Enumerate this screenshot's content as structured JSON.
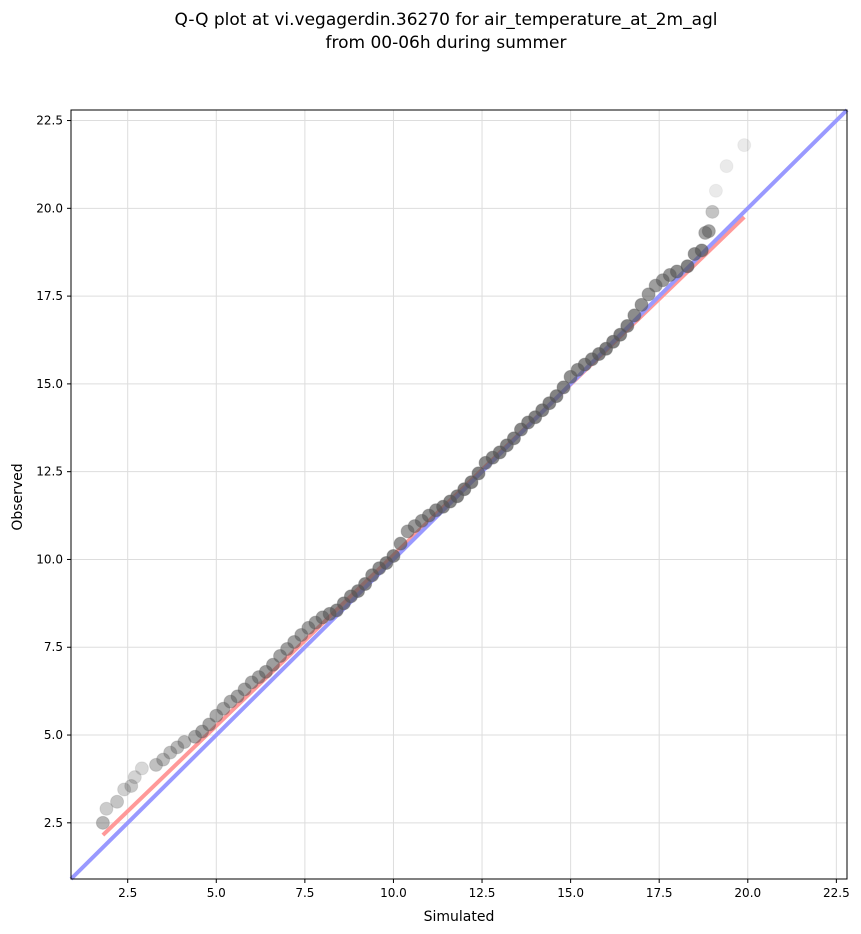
{
  "chart_data": {
    "type": "scatter",
    "title": "Q-Q plot at vi.vegagerdin.36270 for air_temperature_at_2m_agl",
    "subtitle": "from 00-06h during summer",
    "xlabel": "Simulated",
    "ylabel": "Observed",
    "xlim": [
      0.9,
      22.8
    ],
    "ylim": [
      0.9,
      22.8
    ],
    "grid": true,
    "xticks": [
      "2.5",
      "5.0",
      "7.5",
      "10.0",
      "12.5",
      "15.0",
      "17.5",
      "20.0",
      "22.5"
    ],
    "yticks": [
      "2.5",
      "5.0",
      "7.5",
      "10.0",
      "12.5",
      "15.0",
      "17.5",
      "20.0",
      "22.5"
    ],
    "series": [
      {
        "kind": "quantiles",
        "color": "#555555",
        "points": [
          [
            1.8,
            2.5
          ],
          [
            1.9,
            2.9
          ],
          [
            2.2,
            3.1
          ],
          [
            2.4,
            3.45
          ],
          [
            2.6,
            3.55
          ],
          [
            2.7,
            3.8
          ],
          [
            2.9,
            4.05
          ],
          [
            3.3,
            4.15
          ],
          [
            3.5,
            4.3
          ],
          [
            3.7,
            4.5
          ],
          [
            3.9,
            4.65
          ],
          [
            4.1,
            4.8
          ],
          [
            4.4,
            4.95
          ],
          [
            4.6,
            5.1
          ],
          [
            4.8,
            5.3
          ],
          [
            5.0,
            5.55
          ],
          [
            5.2,
            5.75
          ],
          [
            5.4,
            5.95
          ],
          [
            5.6,
            6.1
          ],
          [
            5.8,
            6.3
          ],
          [
            6.0,
            6.5
          ],
          [
            6.2,
            6.65
          ],
          [
            6.4,
            6.8
          ],
          [
            6.6,
            7.0
          ],
          [
            6.8,
            7.25
          ],
          [
            7.0,
            7.45
          ],
          [
            7.2,
            7.65
          ],
          [
            7.4,
            7.85
          ],
          [
            7.6,
            8.05
          ],
          [
            7.8,
            8.2
          ],
          [
            8.0,
            8.35
          ],
          [
            8.2,
            8.45
          ],
          [
            8.4,
            8.55
          ],
          [
            8.6,
            8.75
          ],
          [
            8.8,
            8.95
          ],
          [
            9.0,
            9.1
          ],
          [
            9.2,
            9.3
          ],
          [
            9.4,
            9.55
          ],
          [
            9.6,
            9.75
          ],
          [
            9.8,
            9.9
          ],
          [
            10.0,
            10.1
          ],
          [
            10.2,
            10.45
          ],
          [
            10.4,
            10.8
          ],
          [
            10.6,
            10.95
          ],
          [
            10.8,
            11.1
          ],
          [
            11.0,
            11.25
          ],
          [
            11.2,
            11.4
          ],
          [
            11.4,
            11.5
          ],
          [
            11.6,
            11.65
          ],
          [
            11.8,
            11.8
          ],
          [
            12.0,
            12.0
          ],
          [
            12.2,
            12.2
          ],
          [
            12.4,
            12.45
          ],
          [
            12.6,
            12.75
          ],
          [
            12.8,
            12.9
          ],
          [
            13.0,
            13.05
          ],
          [
            13.2,
            13.25
          ],
          [
            13.4,
            13.45
          ],
          [
            13.6,
            13.7
          ],
          [
            13.8,
            13.9
          ],
          [
            14.0,
            14.05
          ],
          [
            14.2,
            14.25
          ],
          [
            14.4,
            14.45
          ],
          [
            14.6,
            14.65
          ],
          [
            14.8,
            14.9
          ],
          [
            15.0,
            15.2
          ],
          [
            15.2,
            15.4
          ],
          [
            15.4,
            15.55
          ],
          [
            15.6,
            15.7
          ],
          [
            15.8,
            15.85
          ],
          [
            16.0,
            16.0
          ],
          [
            16.2,
            16.2
          ],
          [
            16.4,
            16.4
          ],
          [
            16.6,
            16.65
          ],
          [
            16.8,
            16.95
          ],
          [
            17.0,
            17.25
          ],
          [
            17.2,
            17.55
          ],
          [
            17.4,
            17.8
          ],
          [
            17.6,
            17.95
          ],
          [
            17.8,
            18.1
          ],
          [
            18.0,
            18.2
          ],
          [
            18.3,
            18.35
          ],
          [
            18.5,
            18.7
          ],
          [
            18.7,
            18.8
          ],
          [
            18.8,
            19.3
          ],
          [
            18.9,
            19.35
          ],
          [
            19.0,
            19.9
          ],
          [
            19.1,
            20.5
          ],
          [
            19.4,
            21.2
          ],
          [
            19.9,
            21.8
          ]
        ]
      },
      {
        "kind": "fit-line",
        "color": "#ff9999",
        "points": [
          [
            1.8,
            2.15
          ],
          [
            19.9,
            19.75
          ]
        ]
      },
      {
        "kind": "identity-line",
        "color": "#9999ff",
        "points": [
          [
            0.9,
            0.9
          ],
          [
            22.8,
            22.8
          ]
        ]
      }
    ]
  }
}
